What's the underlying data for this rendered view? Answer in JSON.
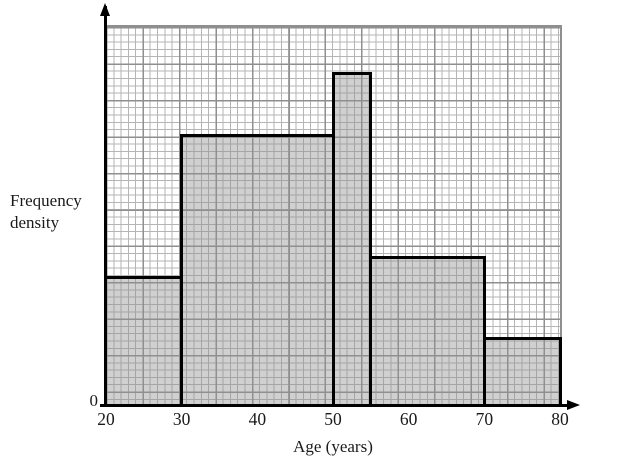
{
  "figure": {
    "ylabel_line1": "Frequency",
    "ylabel_line2": "density",
    "xlabel": "Age (years)",
    "origin_label": "0"
  },
  "colors": {
    "bar_fill": "#c9c9c9",
    "bar_border": "#000000",
    "grid_minor": "#b5b5b5",
    "grid_major": "#8f8f8f",
    "axis": "#000000",
    "text": "#1a1a1a"
  },
  "chart_data": {
    "type": "bar",
    "subtype": "histogram",
    "title": "",
    "xlabel": "Age (years)",
    "ylabel": "Frequency density",
    "xlim": [
      20,
      80
    ],
    "x_ticks": [
      20,
      30,
      40,
      50,
      60,
      70,
      80
    ],
    "y_axis_labels_visible": [
      "0"
    ],
    "grid": "graph paper: small squares with bold line every 5 squares",
    "legend": "none",
    "bars": [
      {
        "from": 20,
        "to": 30,
        "height_small_squares": 18,
        "height_frac": 0.343
      },
      {
        "from": 30,
        "to": 50,
        "height_small_squares": 37.5,
        "height_frac": 0.718
      },
      {
        "from": 50,
        "to": 55,
        "height_small_squares": 46,
        "height_frac": 0.881
      },
      {
        "from": 55,
        "to": 70,
        "height_small_squares": 20.5,
        "height_frac": 0.396
      },
      {
        "from": 70,
        "to": 80,
        "height_small_squares": 9.5,
        "height_frac": 0.182
      }
    ]
  }
}
